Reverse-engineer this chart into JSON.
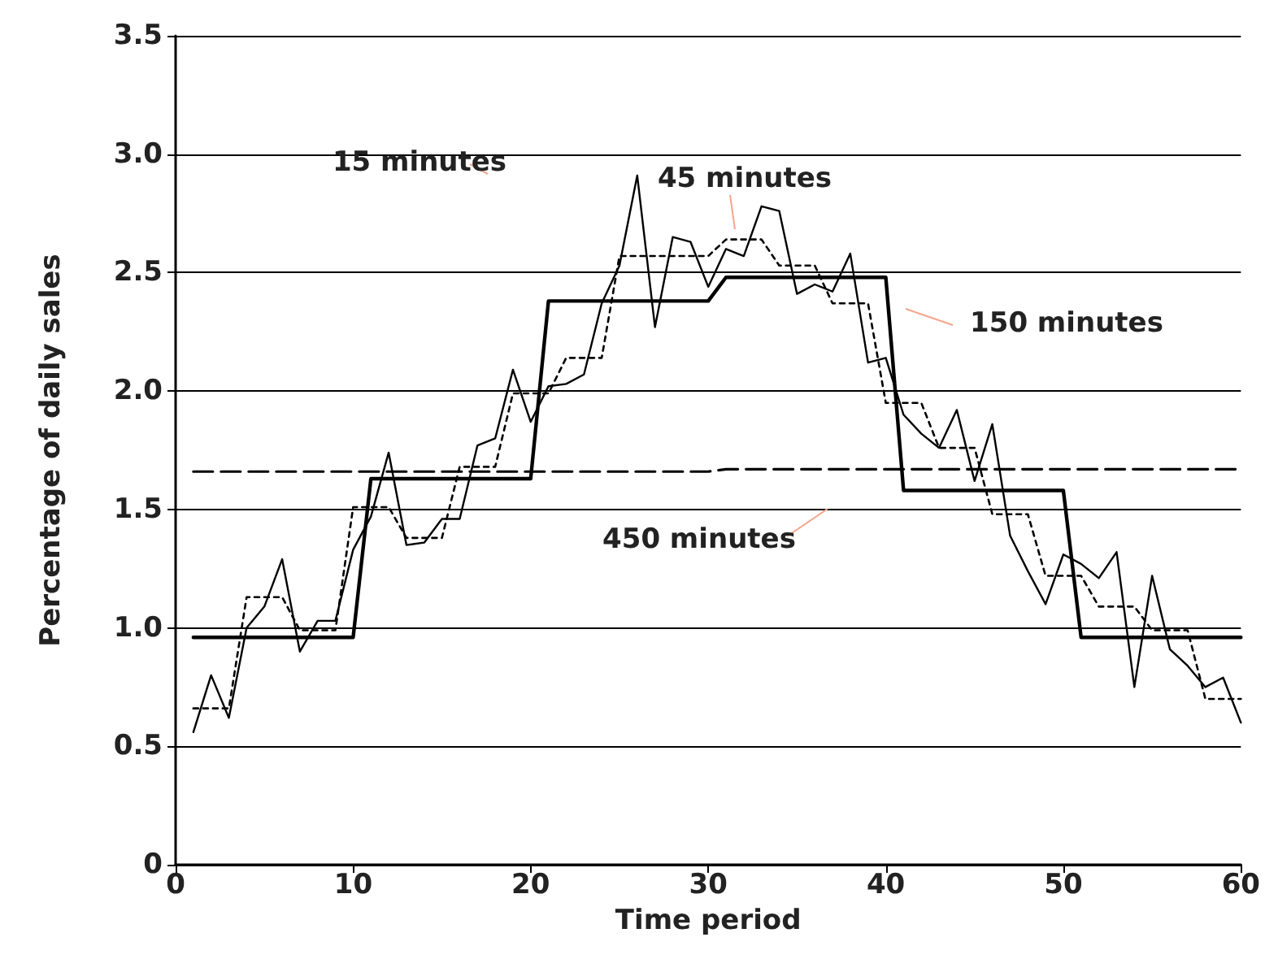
{
  "chart_data": {
    "type": "line",
    "xlabel": "Time period",
    "ylabel": "Percentage of daily sales",
    "x": [
      1,
      2,
      3,
      4,
      5,
      6,
      7,
      8,
      9,
      10,
      11,
      12,
      13,
      14,
      15,
      16,
      17,
      18,
      19,
      20,
      21,
      22,
      23,
      24,
      25,
      26,
      27,
      28,
      29,
      30,
      31,
      32,
      33,
      34,
      35,
      36,
      37,
      38,
      39,
      40,
      41,
      42,
      43,
      44,
      45,
      46,
      47,
      48,
      49,
      50,
      51,
      52,
      53,
      54,
      55,
      56,
      57,
      58,
      59,
      60
    ],
    "series": [
      {
        "name": "15 minutes",
        "color": "#000000",
        "line_style": "solid",
        "values": [
          0.56,
          0.8,
          0.62,
          1.0,
          1.09,
          1.29,
          0.9,
          1.03,
          1.03,
          1.33,
          1.47,
          1.74,
          1.35,
          1.36,
          1.46,
          1.46,
          1.77,
          1.8,
          2.09,
          1.87,
          2.02,
          2.03,
          2.07,
          2.37,
          2.53,
          2.91,
          2.27,
          2.65,
          2.63,
          2.44,
          2.6,
          2.57,
          2.78,
          2.76,
          2.41,
          2.45,
          2.42,
          2.58,
          2.12,
          2.14,
          1.9,
          1.82,
          1.76,
          1.92,
          1.62,
          1.86,
          1.39,
          1.24,
          1.1,
          1.31,
          1.27,
          1.21,
          1.32,
          0.75,
          1.22,
          0.91,
          0.84,
          0.75,
          0.79,
          0.6
        ]
      },
      {
        "name": "45 minutes",
        "color": "#000000",
        "line_style": "dotted",
        "values": [
          0.66,
          0.66,
          0.66,
          1.13,
          1.13,
          1.13,
          0.99,
          0.99,
          0.99,
          1.51,
          1.51,
          1.51,
          1.38,
          1.38,
          1.38,
          1.68,
          1.68,
          1.68,
          1.99,
          1.99,
          1.99,
          2.14,
          2.14,
          2.14,
          2.57,
          2.57,
          2.57,
          2.57,
          2.57,
          2.57,
          2.64,
          2.64,
          2.64,
          2.53,
          2.53,
          2.53,
          2.37,
          2.37,
          2.37,
          1.95,
          1.95,
          1.95,
          1.76,
          1.76,
          1.76,
          1.48,
          1.48,
          1.48,
          1.22,
          1.22,
          1.22,
          1.09,
          1.09,
          1.09,
          0.99,
          0.99,
          0.99,
          0.7,
          0.7,
          0.7
        ]
      },
      {
        "name": "150 minutes",
        "color": "#000000",
        "line_style": "solid",
        "values": [
          0.96,
          0.96,
          0.96,
          0.96,
          0.96,
          0.96,
          0.96,
          0.96,
          0.96,
          0.96,
          1.63,
          1.63,
          1.63,
          1.63,
          1.63,
          1.63,
          1.63,
          1.63,
          1.63,
          1.63,
          2.38,
          2.38,
          2.38,
          2.38,
          2.38,
          2.38,
          2.38,
          2.38,
          2.38,
          2.38,
          2.48,
          2.48,
          2.48,
          2.48,
          2.48,
          2.48,
          2.48,
          2.48,
          2.48,
          2.48,
          1.58,
          1.58,
          1.58,
          1.58,
          1.58,
          1.58,
          1.58,
          1.58,
          1.58,
          1.58,
          0.96,
          0.96,
          0.96,
          0.96,
          0.96,
          0.96,
          0.96,
          0.96,
          0.96,
          0.96
        ]
      },
      {
        "name": "450 minutes",
        "color": "#000000",
        "line_style": "dashed",
        "values": [
          1.66,
          1.66,
          1.66,
          1.66,
          1.66,
          1.66,
          1.66,
          1.66,
          1.66,
          1.66,
          1.66,
          1.66,
          1.66,
          1.66,
          1.66,
          1.66,
          1.66,
          1.66,
          1.66,
          1.66,
          1.66,
          1.66,
          1.66,
          1.66,
          1.66,
          1.66,
          1.66,
          1.66,
          1.66,
          1.66,
          1.67,
          1.67,
          1.67,
          1.67,
          1.67,
          1.67,
          1.67,
          1.67,
          1.67,
          1.67,
          1.67,
          1.67,
          1.67,
          1.67,
          1.67,
          1.67,
          1.67,
          1.67,
          1.67,
          1.67,
          1.67,
          1.67,
          1.67,
          1.67,
          1.67,
          1.67,
          1.67,
          1.67,
          1.67,
          1.67
        ]
      }
    ],
    "xlim": [
      0,
      60
    ],
    "xticks": [
      0,
      10,
      20,
      30,
      40,
      50,
      60
    ],
    "ylim": [
      0,
      3.5
    ],
    "yticks": [
      0,
      {
        "value": 0.5,
        "label": "0.5"
      },
      {
        "value": 1,
        "label": "1.0"
      },
      {
        "value": 1.5,
        "label": "1.5"
      },
      {
        "value": 2,
        "label": "2.0"
      },
      {
        "value": 2.5,
        "label": "2.5"
      },
      {
        "value": 3,
        "label": "3.0"
      },
      {
        "value": 3.5,
        "label": "3.5"
      }
    ],
    "grid": "y",
    "legend": false,
    "marker": "none"
  }
}
